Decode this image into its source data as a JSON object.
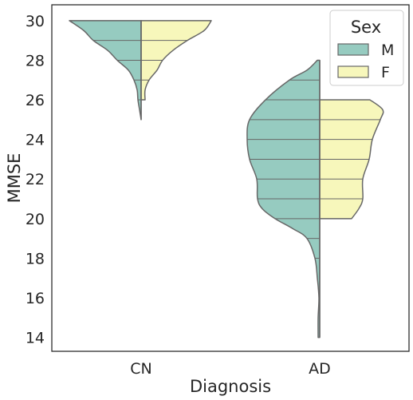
{
  "chart_data": {
    "type": "violin",
    "split": true,
    "inner": "stick",
    "xlabel": "Diagnosis",
    "ylabel": "MMSE",
    "categories": [
      "CN",
      "AD"
    ],
    "ylim": [
      13.3,
      30.8
    ],
    "yticks": [
      14,
      16,
      18,
      20,
      22,
      24,
      26,
      28,
      30
    ],
    "grid": false,
    "legend": {
      "title": "Sex",
      "placement": "top-right",
      "entries": [
        "M",
        "F"
      ]
    },
    "series": [
      {
        "name": "M",
        "color": "#96cbc0",
        "violins": [
          {
            "category": "CN",
            "density": [
              [
                25,
                0.0
              ],
              [
                25.5,
                0.02
              ],
              [
                26,
                0.04
              ],
              [
                26.5,
                0.05
              ],
              [
                27,
                0.09
              ],
              [
                27.5,
                0.16
              ],
              [
                28,
                0.3
              ],
              [
                28.5,
                0.42
              ],
              [
                29,
                0.6
              ],
              [
                29.5,
                0.72
              ],
              [
                30,
                0.9
              ]
            ],
            "sticks": [
              26,
              27,
              28,
              29,
              30
            ]
          },
          {
            "category": "AD",
            "density": [
              [
                14,
                0.02
              ],
              [
                15,
                0.02
              ],
              [
                16,
                0.01
              ],
              [
                17,
                0.03
              ],
              [
                18,
                0.06
              ],
              [
                19,
                0.16
              ],
              [
                19.5,
                0.34
              ],
              [
                20,
                0.56
              ],
              [
                20.5,
                0.72
              ],
              [
                21,
                0.78
              ],
              [
                22,
                0.79
              ],
              [
                23,
                0.88
              ],
              [
                24,
                0.91
              ],
              [
                25,
                0.88
              ],
              [
                26,
                0.68
              ],
              [
                27,
                0.38
              ],
              [
                27.5,
                0.16
              ],
              [
                28,
                0.03
              ]
            ],
            "sticks": [
              14,
              18,
              19,
              20,
              21,
              22,
              23,
              24,
              25,
              26,
              27,
              28
            ]
          }
        ]
      },
      {
        "name": "F",
        "color": "#f7f7bb",
        "violins": [
          {
            "category": "CN",
            "density": [
              [
                26,
                0.05
              ],
              [
                26.5,
                0.05
              ],
              [
                27,
                0.1
              ],
              [
                27.5,
                0.2
              ],
              [
                28,
                0.27
              ],
              [
                28.5,
                0.4
              ],
              [
                29,
                0.58
              ],
              [
                29.5,
                0.79
              ],
              [
                30,
                0.88
              ]
            ],
            "sticks": [
              26,
              27,
              28,
              29,
              30
            ]
          },
          {
            "category": "AD",
            "density": [
              [
                20,
                0.4
              ],
              [
                20.5,
                0.49
              ],
              [
                21,
                0.54
              ],
              [
                22,
                0.54
              ],
              [
                23,
                0.62
              ],
              [
                24,
                0.66
              ],
              [
                25,
                0.76
              ],
              [
                25.5,
                0.79
              ],
              [
                26,
                0.63
              ]
            ],
            "sticks": [
              20,
              21,
              22,
              23,
              24,
              25,
              26
            ]
          }
        ]
      }
    ]
  }
}
